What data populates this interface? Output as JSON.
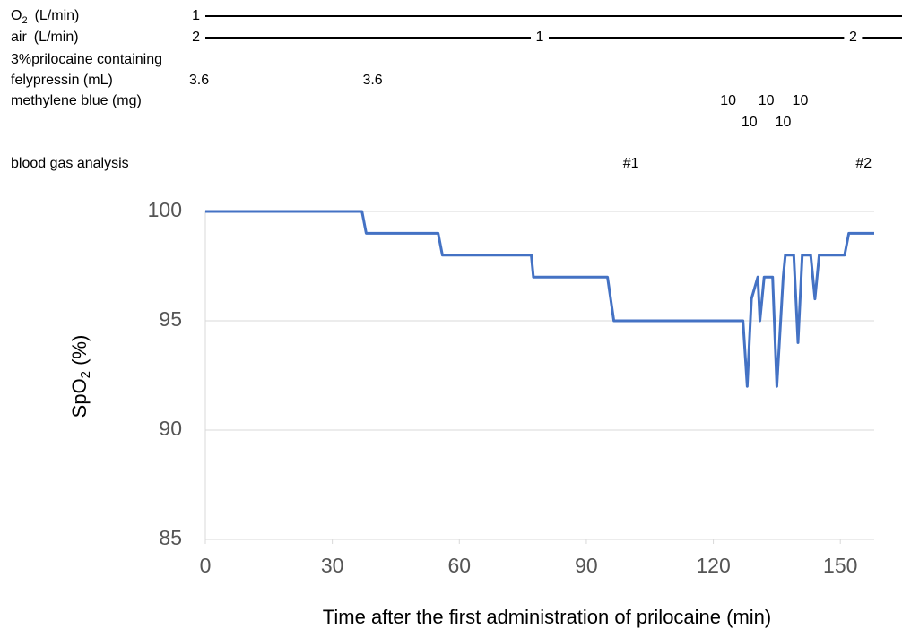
{
  "annotations": [
    {
      "label": [
        "O",
        "2",
        "(L/min)"
      ],
      "kind": "line",
      "points": [
        {
          "t": 0,
          "label": "1"
        }
      ]
    },
    {
      "label": [
        "air",
        "(L/min)"
      ],
      "kind": "line",
      "points": [
        {
          "t": 0,
          "label": "2"
        },
        {
          "t": 79,
          "label": "1"
        },
        {
          "t": 153,
          "label": "2"
        }
      ]
    },
    {
      "label": [
        "3%prilocaine containing",
        "felypressin (mL)"
      ],
      "kind": "values",
      "points": [
        {
          "t": 0,
          "label": "3.6"
        },
        {
          "t": 41,
          "label": "3.6"
        }
      ]
    },
    {
      "label": [
        "methylene blue (mg)"
      ],
      "kind": "values",
      "points": [
        {
          "t": 125,
          "label": "10"
        },
        {
          "t": 130,
          "label": "10",
          "row": 2
        },
        {
          "t": 134,
          "label": "10"
        },
        {
          "t": 138,
          "label": "10",
          "row": 2
        },
        {
          "t": 142,
          "label": "10"
        }
      ]
    },
    {
      "label": [
        "blood gas analysis"
      ],
      "kind": "values",
      "points": [
        {
          "t": 102,
          "label": "#1"
        },
        {
          "t": 157,
          "label": "#2"
        }
      ]
    }
  ],
  "chart_data": {
    "type": "line",
    "y_label": [
      "SpO",
      "2",
      " (%)"
    ],
    "x_label": "Time after the first administration of prilocaine (min)",
    "xlim": [
      0,
      158
    ],
    "xticks": [
      0,
      30,
      60,
      90,
      120,
      150
    ],
    "ylim": [
      85,
      100
    ],
    "yticks": [
      85,
      90,
      95,
      100
    ],
    "grid": true,
    "series": [
      {
        "color": "#4472c4",
        "x": [
          0,
          37,
          38,
          55,
          56,
          77,
          77.5,
          95,
          96.5,
          127,
          128,
          129,
          130.5,
          131,
          132,
          134,
          135,
          136.5,
          137,
          139,
          140,
          141,
          143,
          144,
          145,
          151,
          152,
          158
        ],
        "values": [
          100,
          100,
          99,
          99,
          98,
          98,
          97,
          97,
          95,
          95,
          92,
          96,
          97,
          95,
          97,
          97,
          92,
          97,
          98,
          98,
          94,
          98,
          98,
          96,
          98,
          98,
          99,
          99
        ]
      }
    ]
  }
}
